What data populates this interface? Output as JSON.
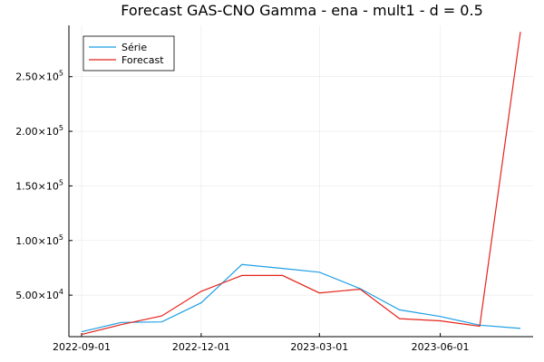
{
  "chart_data": {
    "type": "line",
    "title": "Forecast GAS-CNO Gamma - ena - mult1 - d = 0.5",
    "xlabel": "",
    "ylabel": "",
    "x": [
      "2022-09-01",
      "2022-10-01",
      "2022-11-01",
      "2022-12-01",
      "2023-01-01",
      "2023-02-01",
      "2023-03-01",
      "2023-04-01",
      "2023-05-01",
      "2023-06-01",
      "2023-07-01",
      "2023-08-01"
    ],
    "x_ticks": [
      "2022-09-01",
      "2022-12-01",
      "2023-03-01",
      "2023-06-01"
    ],
    "y_ticks": [
      {
        "value": 50000,
        "mantissa": "5.00",
        "exp": "4"
      },
      {
        "value": 100000,
        "mantissa": "1.00",
        "exp": "5"
      },
      {
        "value": 150000,
        "mantissa": "1.50",
        "exp": "5"
      },
      {
        "value": 200000,
        "mantissa": "2.00",
        "exp": "5"
      },
      {
        "value": 250000,
        "mantissa": "2.50",
        "exp": "5"
      }
    ],
    "ylim": [
      12000,
      297000
    ],
    "grid": true,
    "legend_position": "top-left",
    "series": [
      {
        "name": "Série",
        "color": "#1f9fe5",
        "values": [
          16500,
          25000,
          25500,
          43000,
          78000,
          74500,
          71000,
          56000,
          36500,
          30500,
          22500,
          19500
        ]
      },
      {
        "name": "Forecast",
        "color": "#e3241b",
        "values": [
          14000,
          23000,
          31000,
          53500,
          68000,
          68000,
          52000,
          55500,
          28500,
          26500,
          21500,
          291000
        ]
      }
    ]
  }
}
